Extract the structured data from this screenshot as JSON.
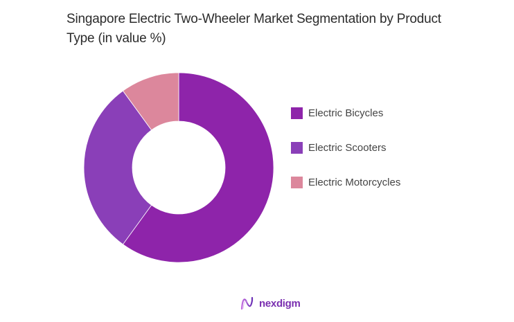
{
  "header": {
    "title": "Singapore Electric Two-Wheeler Market Segmentation by Product Type (in value %)"
  },
  "legend": {
    "items": [
      {
        "label": "Electric Bicycles",
        "color": "#8e24aa"
      },
      {
        "label": "Electric Scooters",
        "color": "#8a3fb8"
      },
      {
        "label": "Electric Motorcycles",
        "color": "#dc879c"
      }
    ]
  },
  "footer": {
    "brand": "nexdigm",
    "brand_color": "#7a2fb0"
  },
  "chart_data": {
    "type": "pie",
    "variant": "donut",
    "title": "Singapore Electric Two-Wheeler Market Segmentation by Product Type (in value %)",
    "categories": [
      "Electric Bicycles",
      "Electric Scooters",
      "Electric Motorcycles"
    ],
    "values": [
      60,
      30,
      10
    ],
    "colors": [
      "#8e24aa",
      "#8a3fb8",
      "#dc879c"
    ],
    "unit": "%",
    "start_angle": "12 o'clock, clockwise",
    "legend_position": "right",
    "data_labels": false
  }
}
